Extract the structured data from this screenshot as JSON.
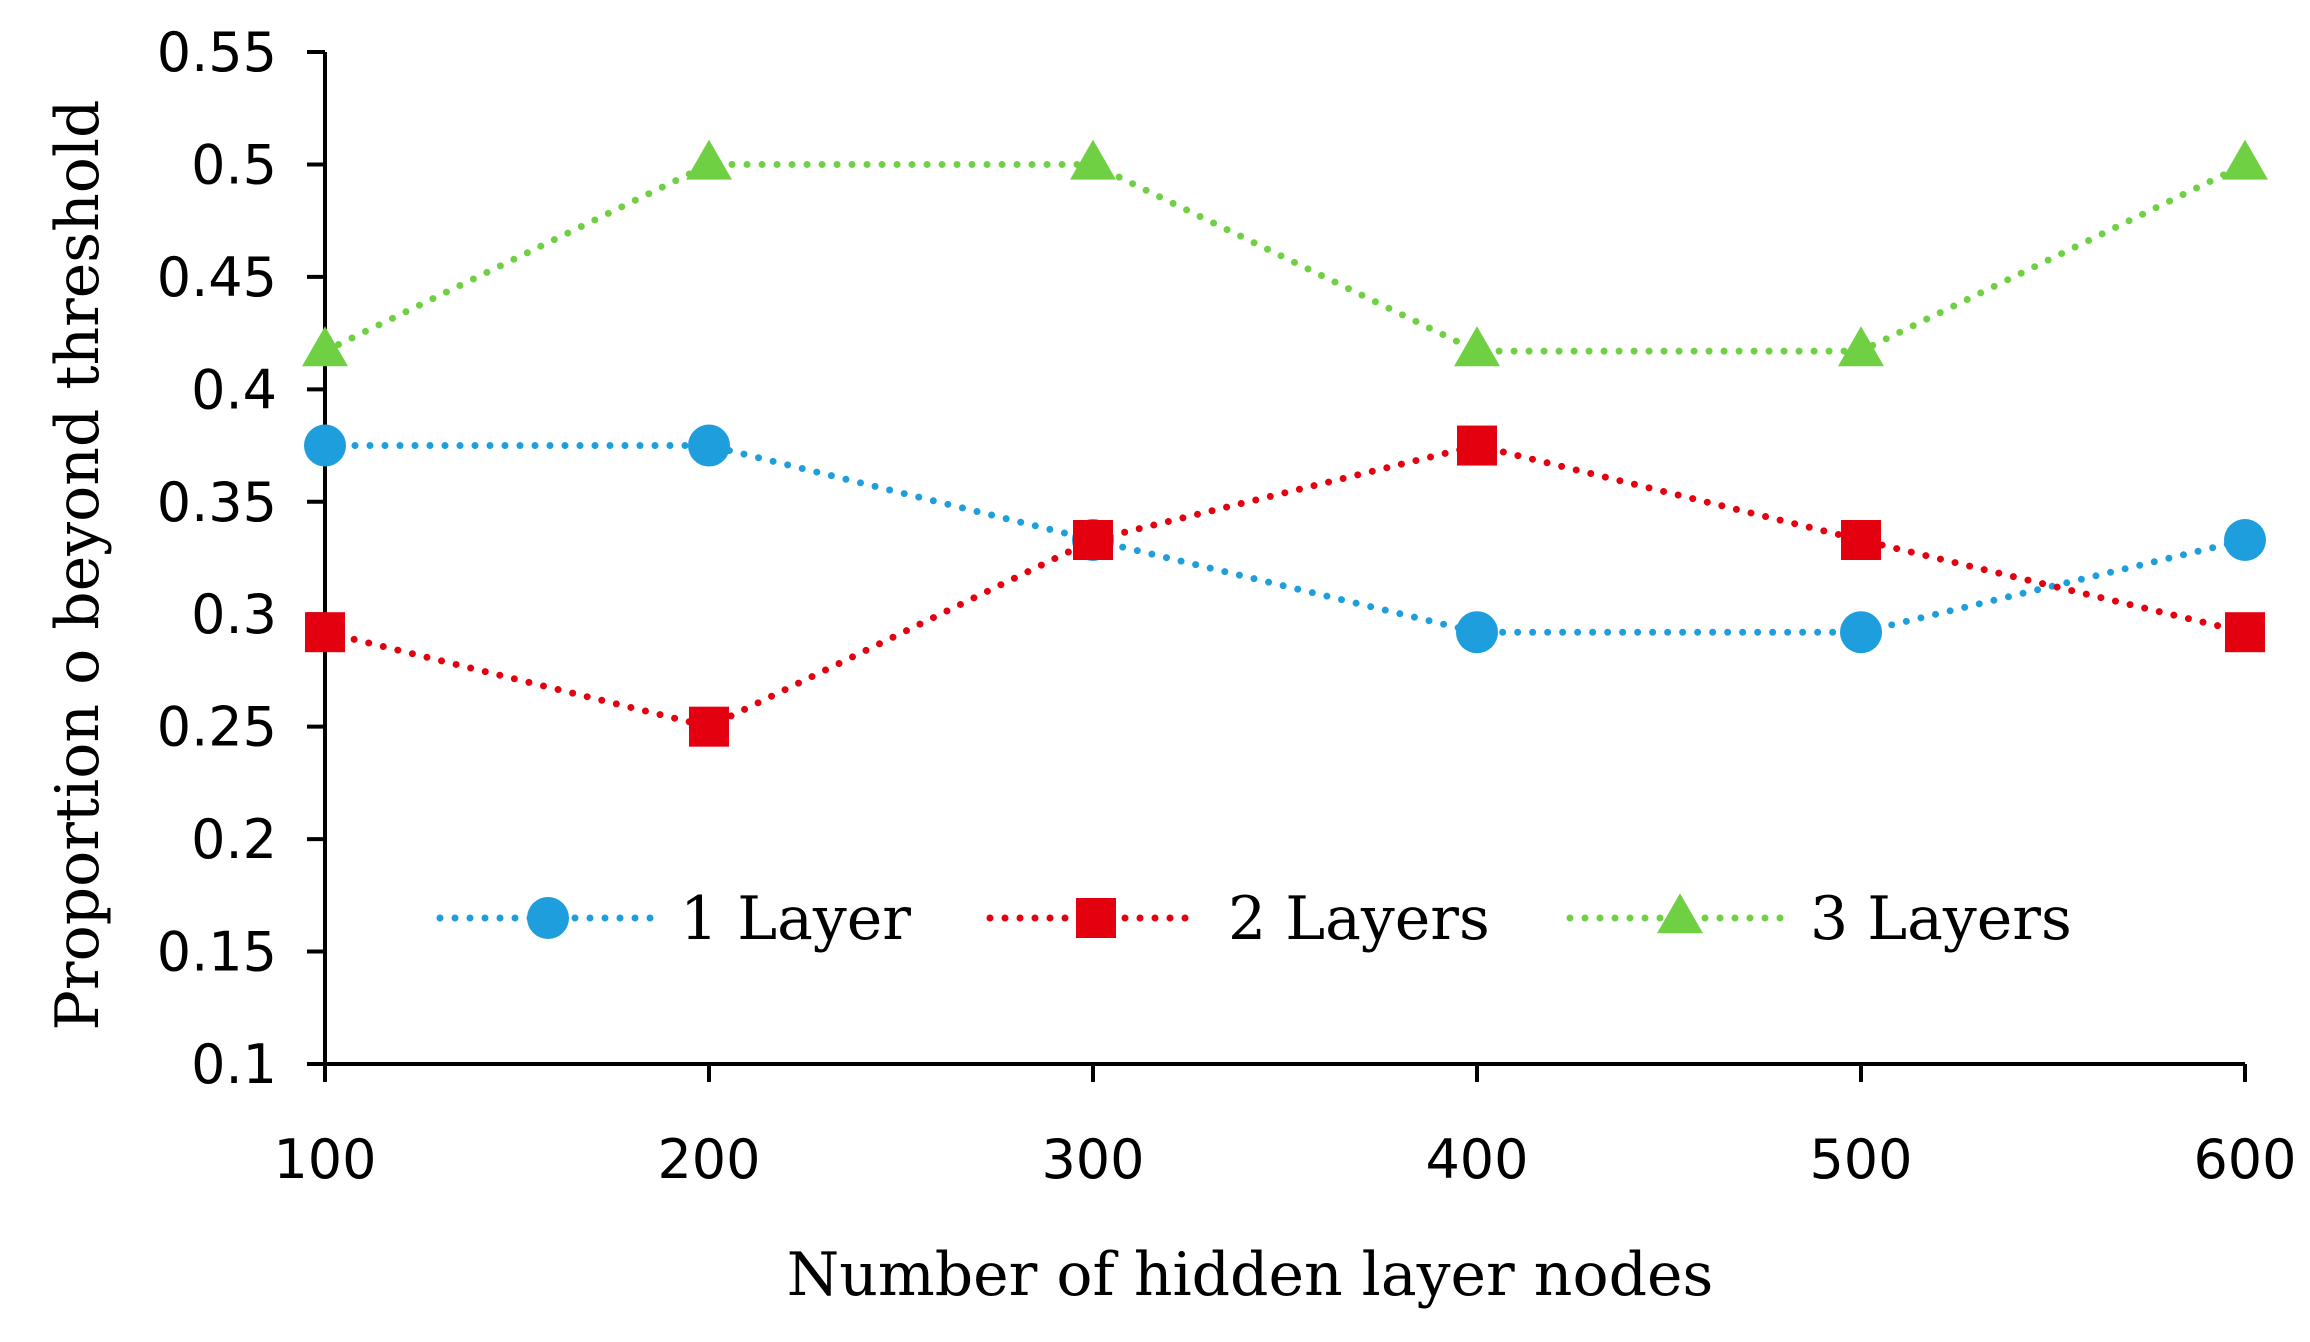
{
  "chart_data": {
    "type": "line",
    "title": "",
    "xlabel": "Number of hidden layer nodes",
    "ylabel": "Proportion o beyond threshold",
    "x": [
      100,
      200,
      300,
      400,
      500,
      600
    ],
    "x_tick_labels": [
      "100",
      "200",
      "300",
      "400",
      "500",
      "600"
    ],
    "y_tick_labels": [
      "0.1",
      "0.15",
      "0.2",
      "0.25",
      "0.3",
      "0.35",
      "0.4",
      "0.45",
      "0.5",
      "0.55"
    ],
    "y_ticks": [
      0.1,
      0.15,
      0.2,
      0.25,
      0.3,
      0.35,
      0.4,
      0.45,
      0.5,
      0.55
    ],
    "ylim": [
      0.1,
      0.55
    ],
    "xlim": [
      100,
      600
    ],
    "grid": false,
    "legend_position": "bottom-center, inside plot",
    "series": [
      {
        "name": "1 Layer",
        "values": [
          0.375,
          0.375,
          0.333,
          0.292,
          0.292,
          0.333
        ],
        "color": "#1f9ede",
        "marker": "circle",
        "line_style": "dotted"
      },
      {
        "name": "2 Layers",
        "values": [
          0.292,
          0.25,
          0.333,
          0.375,
          0.333,
          0.292
        ],
        "color": "#e3000f",
        "marker": "square",
        "line_style": "dotted"
      },
      {
        "name": "3 Layers",
        "values": [
          0.417,
          0.5,
          0.5,
          0.417,
          0.417,
          0.5
        ],
        "color": "#6fd043",
        "marker": "triangle",
        "line_style": "dotted"
      }
    ]
  }
}
